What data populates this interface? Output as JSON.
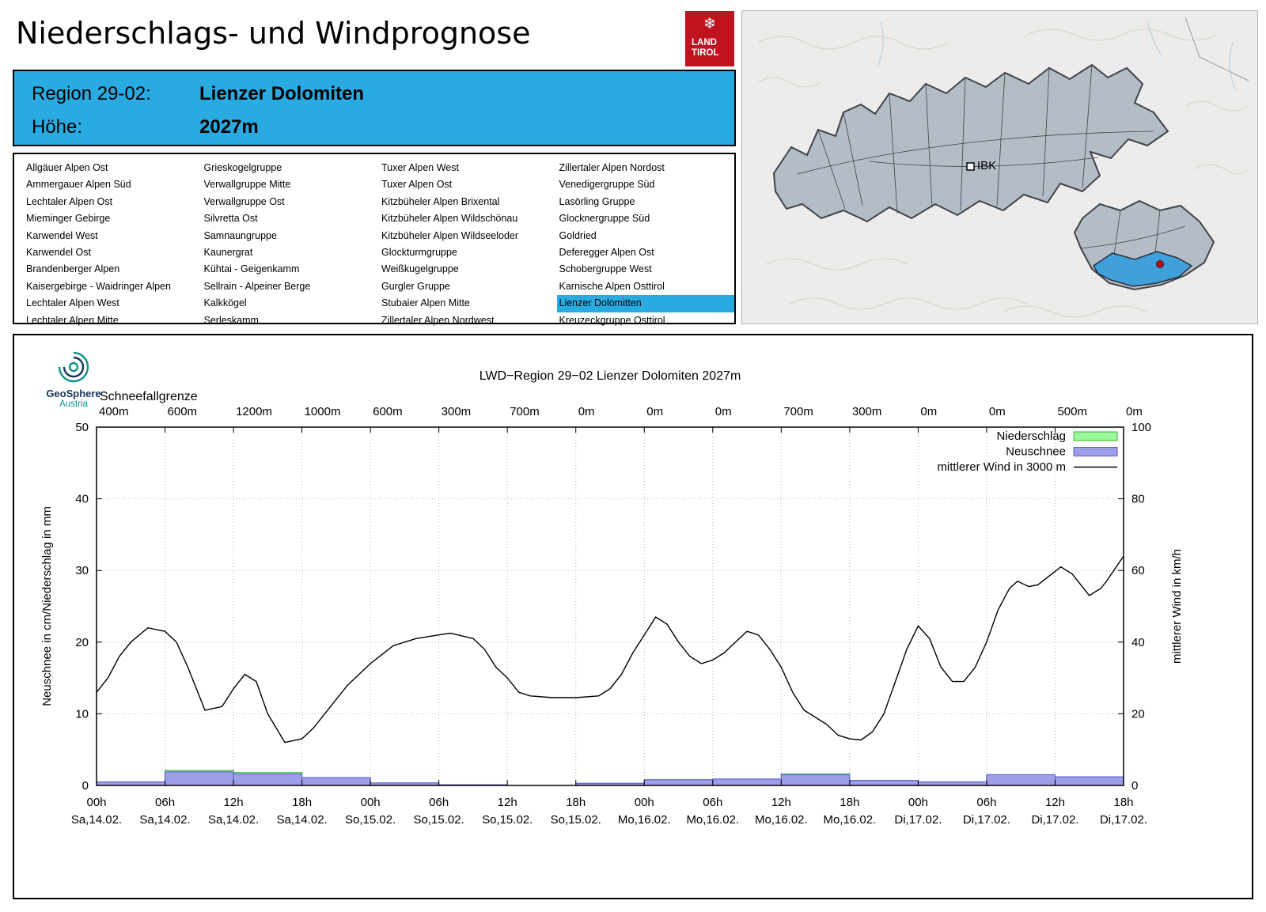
{
  "header": {
    "title": "Niederschlags- und Windprognose",
    "logo_icon": "❄",
    "logo_line1": "LAND",
    "logo_line2": "TIROL"
  },
  "region_box": {
    "region_label": "Region 29-02:",
    "region_value": "Lienzer Dolomiten",
    "altitude_label": "Höhe:",
    "altitude_value": "2027m",
    "accent_color": "#29abe2"
  },
  "region_list": {
    "selected": "Lienzer Dolomitten",
    "columns": [
      [
        "Allgäuer Alpen Ost",
        "Ammergauer Alpen Süd",
        "Lechtaler Alpen Ost",
        "Mieminger Gebirge",
        "Karwendel West",
        "Karwendel Ost",
        "Brandenberger Alpen",
        "Kaisergebirge - Waidringer Alpen",
        "Lechtaler Alpen West",
        "Lechtaler Alpen Mitte"
      ],
      [
        "Grieskogelgruppe",
        "Verwallgruppe Mitte",
        "Verwallgruppe Ost",
        "Silvretta Ost",
        "Samnaungruppe",
        "Kaunergrat",
        "Kühtai - Geigenkamm",
        "Sellrain - Alpeiner Berge",
        "Kalkkögel",
        "Serleskamm"
      ],
      [
        "Tuxer Alpen West",
        "Tuxer Alpen Ost",
        "Kitzbüheler Alpen Brixental",
        "Kitzbüheler Alpen Wildschönau",
        "Kitzbüheler Alpen Wildseeloder",
        "Glockturmgruppe",
        "Weißkugelgruppe",
        "Gurgler Gruppe",
        "Stubaier Alpen Mitte",
        "Zillertaler Alpen Nordwest"
      ],
      [
        "Zillertaler Alpen Nordost",
        "Venedigergruppe Süd",
        "Lasörling Gruppe",
        "Glocknergruppe Süd",
        "Goldried",
        "Deferegger Alpen Ost",
        "Schobergruppe West",
        "Karnische Alpen Osttirol",
        "Lienzer Dolomitten",
        "Kreuzeckgruppe Osttirol"
      ]
    ]
  },
  "map": {
    "city_label": "IBK",
    "region_fill": "#b4bcc6",
    "region_border": "#3f444b",
    "highlight_fill": "#3fa0dc",
    "marker_color": "#b01020"
  },
  "geosphere": {
    "name": "GeoSphere",
    "country": "Austria"
  },
  "chart_data": {
    "type": "mixed",
    "title": "LWD−Region 29−02 Lienzer Dolomiten 2027m",
    "snowline_label": "Schneefallgrenze",
    "snowline_values": [
      "400m",
      "600m",
      "1200m",
      "1000m",
      "600m",
      "300m",
      "700m",
      "0m",
      "0m",
      "0m",
      "700m",
      "300m",
      "0m",
      "0m",
      "500m",
      "0m"
    ],
    "x_hours_span": [
      0,
      90
    ],
    "tick_step_hours": 6,
    "ticks": [
      {
        "hour": "00h",
        "day": "Sa,14.02."
      },
      {
        "hour": "06h",
        "day": "Sa,14.02."
      },
      {
        "hour": "12h",
        "day": "Sa,14.02."
      },
      {
        "hour": "18h",
        "day": "Sa,14.02."
      },
      {
        "hour": "00h",
        "day": "So,15.02."
      },
      {
        "hour": "06h",
        "day": "So,15.02."
      },
      {
        "hour": "12h",
        "day": "So,15.02."
      },
      {
        "hour": "18h",
        "day": "So,15.02."
      },
      {
        "hour": "00h",
        "day": "Mo,16.02."
      },
      {
        "hour": "06h",
        "day": "Mo,16.02."
      },
      {
        "hour": "12h",
        "day": "Mo,16.02."
      },
      {
        "hour": "18h",
        "day": "Mo,16.02."
      },
      {
        "hour": "00h",
        "day": "Di,17.02."
      },
      {
        "hour": "06h",
        "day": "Di,17.02."
      },
      {
        "hour": "12h",
        "day": "Di,17.02."
      },
      {
        "hour": "18h",
        "day": "Di,17.02."
      }
    ],
    "ylabel_left": "Neuschnee in cm/Niederschlag in mm",
    "ylabel_right": "mittlerer Wind in km/h",
    "ylim_left": [
      0,
      50
    ],
    "ylim_right": [
      0,
      100
    ],
    "yticks_left": [
      0,
      10,
      20,
      30,
      40,
      50
    ],
    "yticks_right": [
      0,
      20,
      40,
      60,
      80,
      100
    ],
    "legend": [
      {
        "label": "Niederschlag",
        "type": "bar",
        "fill": "#9cf79c",
        "stroke": "#2eb82e"
      },
      {
        "label": "Neuschnee",
        "type": "bar",
        "fill": "#9e9ee8",
        "stroke": "#5a5ad0"
      },
      {
        "label": "mittlerer Wind in 3000 m",
        "type": "line",
        "stroke": "#000000"
      }
    ],
    "bars_interval_hours": 6,
    "niederschlag_mm": [
      0.5,
      2.1,
      1.8,
      1.1,
      0.35,
      0.1,
      0,
      0.3,
      0.8,
      0.9,
      1.6,
      0.7,
      0.5,
      1.5,
      1.2
    ],
    "neuschnee_cm": [
      0.5,
      1.9,
      1.6,
      1.1,
      0.35,
      0.1,
      0,
      0.3,
      0.8,
      0.9,
      1.5,
      0.7,
      0.5,
      1.5,
      1.2
    ],
    "wind_points": [
      [
        0,
        26
      ],
      [
        1,
        30
      ],
      [
        2,
        36
      ],
      [
        3,
        40
      ],
      [
        4.5,
        44
      ],
      [
        6,
        43
      ],
      [
        7,
        40
      ],
      [
        8,
        33
      ],
      [
        9.5,
        21
      ],
      [
        11,
        22
      ],
      [
        12,
        27
      ],
      [
        13,
        31
      ],
      [
        14,
        29
      ],
      [
        15,
        20
      ],
      [
        16.5,
        12
      ],
      [
        18,
        13
      ],
      [
        19,
        16
      ],
      [
        20,
        20
      ],
      [
        22,
        28
      ],
      [
        24,
        34
      ],
      [
        26,
        39
      ],
      [
        28,
        41
      ],
      [
        30,
        42
      ],
      [
        31,
        42.5
      ],
      [
        33,
        41
      ],
      [
        34,
        38
      ],
      [
        35,
        33
      ],
      [
        36,
        30
      ],
      [
        37,
        26
      ],
      [
        38,
        25
      ],
      [
        40,
        24.5
      ],
      [
        42,
        24.5
      ],
      [
        44,
        25
      ],
      [
        45,
        27
      ],
      [
        46,
        31
      ],
      [
        47,
        37
      ],
      [
        48,
        42
      ],
      [
        49,
        47
      ],
      [
        50,
        45
      ],
      [
        51,
        40
      ],
      [
        52,
        36
      ],
      [
        53,
        34
      ],
      [
        54,
        35
      ],
      [
        55,
        37
      ],
      [
        56,
        40
      ],
      [
        57,
        43
      ],
      [
        58,
        42
      ],
      [
        59,
        38
      ],
      [
        60,
        33
      ],
      [
        61,
        26
      ],
      [
        62,
        21
      ],
      [
        63,
        19
      ],
      [
        64,
        17
      ],
      [
        65,
        14
      ],
      [
        66,
        13
      ],
      [
        67,
        12.7
      ],
      [
        68,
        15
      ],
      [
        69,
        20
      ],
      [
        70,
        29
      ],
      [
        71,
        38
      ],
      [
        72,
        44.5
      ],
      [
        73,
        41
      ],
      [
        74,
        33
      ],
      [
        75,
        29
      ],
      [
        76,
        29
      ],
      [
        77,
        33
      ],
      [
        78,
        40
      ],
      [
        79,
        49
      ],
      [
        80,
        55
      ],
      [
        80.7,
        57
      ],
      [
        81.7,
        55.5
      ],
      [
        82.5,
        56
      ],
      [
        84.5,
        61
      ],
      [
        85.5,
        59
      ],
      [
        87,
        53
      ],
      [
        88,
        55
      ],
      [
        88.5,
        57
      ],
      [
        90,
        64
      ]
    ]
  }
}
